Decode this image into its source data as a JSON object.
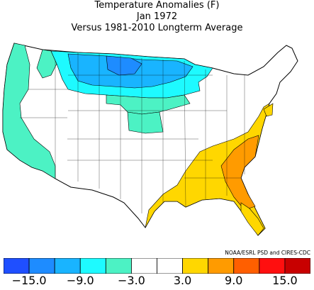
{
  "header": {
    "title": "Temperature Anomalies (F)",
    "subtitle": "Jan 1972",
    "baseline": "Versus 1981-2010 Longterm Average"
  },
  "credit": "NOAA/ESRL PSD and CIRES-CDC",
  "legend": {
    "colors": [
      "#1f4fff",
      "#1e8cff",
      "#19b4ff",
      "#1efaff",
      "#4cf2c4",
      "#ffffff",
      "#ffffff",
      "#ffd700",
      "#ff9b00",
      "#ff5f00",
      "#ff0f0f",
      "#c80000"
    ],
    "tick_labels": [
      "−15.0",
      "−9.0",
      "−3.0",
      "3.0",
      "9.0",
      "15.0"
    ]
  },
  "map_regions": [
    {
      "name": "northern-plains-deep-cold",
      "anomaly_class": "-15 to -12",
      "color": "#1e8cff"
    },
    {
      "name": "upper-midwest-cold",
      "anomaly_class": "-9 to -6",
      "color": "#19b4ff"
    },
    {
      "name": "northern-tier-cold",
      "anomaly_class": "-6 to -3",
      "color": "#1efaff"
    },
    {
      "name": "west-coast-cool",
      "anomaly_class": "-3 to 0",
      "color": "#4cf2c4"
    },
    {
      "name": "southeast-warm",
      "anomaly_class": "3 to 6",
      "color": "#ffd700"
    },
    {
      "name": "carolinas-warm",
      "anomaly_class": "6 to 9",
      "color": "#ff9b00"
    }
  ]
}
